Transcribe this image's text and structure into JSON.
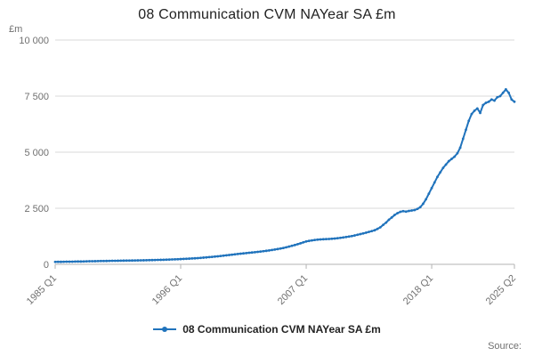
{
  "title": "08 Communication CVM NAYear SA £m",
  "y_axis_unit_label": "£m",
  "legend": {
    "label": "08 Communication CVM NAYear SA £m"
  },
  "source_label": "Source:",
  "colors": {
    "line": "#2073bc",
    "grid": "#d9d9d9",
    "axis": "#b3b3b3",
    "tick_text": "#707070",
    "title_text": "#222222"
  },
  "chart_data": {
    "type": "line",
    "title": "08 Communication CVM NAYear SA £m",
    "xlabel": "",
    "ylabel": "£m",
    "ylim": [
      0,
      10000
    ],
    "grid": "horizontal",
    "legend_position": "bottom",
    "x_start": "1985 Q1",
    "x_end": "2025 Q2",
    "frequency": "quarterly",
    "y_ticks": [
      {
        "value": 0,
        "label": "0"
      },
      {
        "value": 2500,
        "label": "2 500"
      },
      {
        "value": 5000,
        "label": "5 000"
      },
      {
        "value": 7500,
        "label": "7 500"
      },
      {
        "value": 10000,
        "label": "10 000"
      }
    ],
    "x_ticks": [
      {
        "index": 0,
        "label": "1985 Q1"
      },
      {
        "index": 44,
        "label": "1996 Q1"
      },
      {
        "index": 88,
        "label": "2007 Q1"
      },
      {
        "index": 132,
        "label": "2018 Q1"
      },
      {
        "index": 161,
        "label": "2025 Q2"
      }
    ],
    "series": [
      {
        "name": "08 Communication CVM NAYear SA £m",
        "values": [
          110,
          112,
          111,
          114,
          118,
          117,
          120,
          123,
          127,
          126,
          130,
          133,
          137,
          139,
          141,
          144,
          148,
          150,
          151,
          154,
          158,
          160,
          161,
          163,
          166,
          167,
          169,
          171,
          174,
          176,
          178,
          181,
          184,
          187,
          190,
          193,
          196,
          200,
          204,
          208,
          212,
          217,
          222,
          228,
          235,
          241,
          248,
          255,
          262,
          270,
          279,
          289,
          300,
          310,
          321,
          333,
          345,
          358,
          372,
          386,
          400,
          415,
          430,
          445,
          460,
          474,
          488,
          501,
          515,
          528,
          542,
          556,
          570,
          586,
          602,
          618,
          640,
          660,
          682,
          705,
          730,
          760,
          792,
          826,
          860,
          898,
          938,
          980,
          1020,
          1045,
          1065,
          1085,
          1100,
          1110,
          1118,
          1125,
          1130,
          1140,
          1152,
          1165,
          1180,
          1198,
          1218,
          1238,
          1260,
          1288,
          1318,
          1348,
          1380,
          1412,
          1446,
          1482,
          1520,
          1580,
          1650,
          1760,
          1860,
          1990,
          2090,
          2200,
          2280,
          2340,
          2370,
          2350,
          2380,
          2400,
          2420,
          2470,
          2550,
          2700,
          2900,
          3150,
          3400,
          3650,
          3900,
          4100,
          4300,
          4450,
          4600,
          4700,
          4800,
          4950,
          5200,
          5600,
          6000,
          6400,
          6700,
          6850,
          6950,
          6750,
          7100,
          7200,
          7250,
          7350,
          7300,
          7450,
          7500,
          7650,
          7800,
          7650,
          7350,
          7250
        ]
      }
    ]
  }
}
